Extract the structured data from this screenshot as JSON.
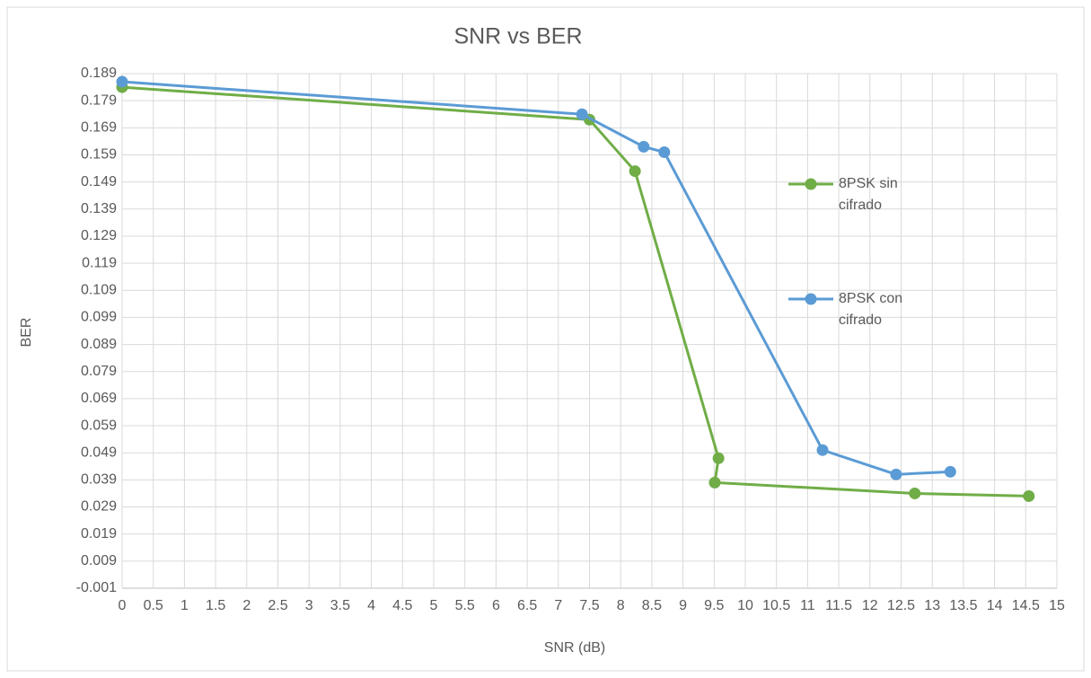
{
  "chart_data": {
    "type": "line",
    "title": "SNR vs BER",
    "x_label": "SNR (dB)",
    "y_label": "BER",
    "series": [
      {
        "name": "8PSK sin cifrado",
        "color": "#70ad47",
        "x": [
          0,
          7.5,
          8.23,
          9.57,
          9.51,
          12.72,
          14.55
        ],
        "values": [
          0.184,
          0.172,
          0.153,
          0.047,
          0.038,
          0.034,
          0.033
        ]
      },
      {
        "name": "8PSK con cifrado",
        "color": "#5b9bd5",
        "x": [
          0,
          7.38,
          8.37,
          8.7,
          11.24,
          12.42,
          13.29
        ],
        "values": [
          0.186,
          0.174,
          0.162,
          0.16,
          0.05,
          0.041,
          0.042
        ]
      }
    ],
    "xlim": [
      0,
      15
    ],
    "xticks": [
      0,
      0.5,
      1,
      1.5,
      2,
      2.5,
      3,
      3.5,
      4,
      4.5,
      5,
      5.5,
      6,
      6.5,
      7,
      7.5,
      8,
      8.5,
      9,
      9.5,
      10,
      10.5,
      11,
      11.5,
      12,
      12.5,
      13,
      13.5,
      14,
      14.5,
      15
    ],
    "ylim": [
      -0.001,
      0.189
    ],
    "yticks": [
      -0.001,
      0.009,
      0.019,
      0.029,
      0.039,
      0.049,
      0.059,
      0.069,
      0.079,
      0.089,
      0.099,
      0.109,
      0.119,
      0.129,
      0.139,
      0.149,
      0.159,
      0.169,
      0.179,
      0.189
    ],
    "grid": true,
    "legend": "right"
  }
}
